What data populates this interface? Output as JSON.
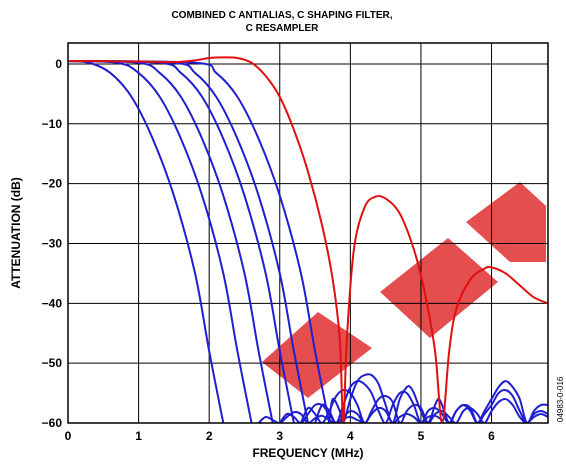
{
  "chart_data": {
    "type": "line",
    "title": "COMBINED C ANTIALIAS, C SHAPING FILTER,",
    "subtitle": "C RESAMPLER",
    "xlabel": "FREQUENCY (MHz)",
    "ylabel": "ATTENUATION (dB)",
    "xlim": [
      0,
      6.8
    ],
    "ylim": [
      -60,
      3.5
    ],
    "x_ticks": [
      "0",
      "1",
      "2",
      "3",
      "4",
      "5",
      "6"
    ],
    "y_ticks": [
      "0",
      "−10",
      "−20",
      "−30",
      "−40",
      "−50",
      "−60"
    ],
    "grid": true,
    "figure_id": "04983-0-016",
    "colors": {
      "blue": "#1f1fd0",
      "red": "#e01010",
      "watermark": "#e03030"
    },
    "series": [
      {
        "color": "#1f1fd0",
        "x": [
          0,
          0.3,
          0.6,
          0.9,
          1.2,
          1.5,
          1.8,
          2.0,
          2.2
        ],
        "y": [
          0.5,
          0.2,
          -1.5,
          -5.5,
          -12.5,
          -22,
          -35,
          -48,
          -60
        ]
      },
      {
        "color": "#1f1fd0",
        "x": [
          0,
          0.7,
          1.0,
          1.3,
          1.6,
          1.9,
          2.2,
          2.4,
          2.6
        ],
        "y": [
          0.5,
          0.2,
          -1.5,
          -5.5,
          -12.5,
          -22,
          -35,
          -48,
          -60
        ]
      },
      {
        "color": "#1f1fd0",
        "x": [
          0,
          1.0,
          1.3,
          1.6,
          1.9,
          2.2,
          2.5,
          2.7,
          2.9
        ],
        "y": [
          0.5,
          0.2,
          -1.5,
          -5.5,
          -12.5,
          -22,
          -35,
          -48,
          -60
        ]
      },
      {
        "color": "#1f1fd0",
        "x": [
          0,
          1.3,
          1.6,
          1.9,
          2.2,
          2.5,
          2.8,
          3.0,
          3.2
        ],
        "y": [
          0.5,
          0.2,
          -1.5,
          -5.5,
          -12.5,
          -22,
          -35,
          -48,
          -60
        ]
      },
      {
        "color": "#1f1fd0",
        "x": [
          0,
          1.5,
          1.8,
          2.1,
          2.4,
          2.7,
          3.0,
          3.2,
          3.4
        ],
        "y": [
          0.5,
          0.2,
          -1.5,
          -5.5,
          -12.5,
          -22,
          -35,
          -48,
          -60
        ]
      },
      {
        "color": "#1f1fd0",
        "x": [
          0,
          1.8,
          2.1,
          2.4,
          2.7,
          3.0,
          3.3,
          3.5,
          3.7
        ],
        "y": [
          0.5,
          0.2,
          -1.5,
          -5.5,
          -12.5,
          -22,
          -35,
          -48,
          -60
        ]
      },
      {
        "color": "#e01010",
        "x": [
          0,
          1.0,
          1.5,
          1.8,
          2.0,
          2.2,
          2.4,
          2.6,
          2.8,
          3.0,
          3.2,
          3.4,
          3.6,
          3.75,
          3.85,
          3.9,
          3.95,
          4.05,
          4.2,
          4.35,
          4.5,
          4.7,
          4.9,
          5.05,
          5.2,
          5.3,
          5.4,
          5.5,
          5.7,
          5.9,
          6.0,
          6.2,
          6.4,
          6.6,
          6.8
        ],
        "y": [
          0.5,
          0.4,
          0.3,
          0.6,
          1.0,
          1.1,
          1.0,
          0.2,
          -2,
          -5.5,
          -11,
          -18,
          -27,
          -36,
          -46,
          -60,
          -46,
          -31,
          -24,
          -22.2,
          -22.5,
          -25,
          -31,
          -38,
          -48,
          -60,
          -48,
          -41,
          -36,
          -34.2,
          -34,
          -35,
          -37,
          -39,
          -40
        ]
      },
      {
        "color": "#1f1fd0",
        "x": [
          3.7,
          3.75,
          3.85,
          3.9,
          4.0,
          4.1,
          4.2,
          4.3,
          4.4,
          4.5,
          4.6,
          4.7,
          4.8,
          4.85,
          4.9,
          5.0,
          5.1,
          5.2,
          5.25,
          5.3,
          5.4,
          5.5,
          5.6,
          5.7,
          5.8,
          5.9,
          6.0,
          6.1,
          6.2,
          6.3,
          6.4,
          6.5,
          6.6,
          6.7,
          6.8
        ],
        "y": [
          -60,
          -56,
          -58,
          -60,
          -56,
          -53,
          -52,
          -52,
          -53.5,
          -57,
          -60,
          -56,
          -54,
          -54,
          -55,
          -58,
          -60,
          -57,
          -56,
          -57,
          -60,
          -58,
          -57,
          -58,
          -60,
          -58,
          -56,
          -54,
          -53,
          -54,
          -56,
          -60,
          -58,
          -57,
          -57
        ]
      },
      {
        "color": "#1f1fd0",
        "x": [
          3.5,
          3.6,
          3.7,
          3.8,
          3.9,
          4.0,
          4.1,
          4.2,
          4.3,
          4.4,
          4.5,
          4.6,
          4.7,
          4.8,
          4.9,
          5.0,
          5.1,
          5.2,
          5.3,
          5.4,
          5.5,
          5.6,
          5.7,
          5.8,
          5.9,
          6.0,
          6.1,
          6.2,
          6.3,
          6.4,
          6.5,
          6.6,
          6.7,
          6.8
        ],
        "y": [
          -60,
          -57,
          -58,
          -60,
          -57,
          -54,
          -53,
          -53.5,
          -55,
          -58,
          -60,
          -57,
          -55,
          -55,
          -57,
          -60,
          -58,
          -57.5,
          -58.5,
          -60,
          -58,
          -57,
          -57.5,
          -60,
          -58.5,
          -57,
          -55,
          -54.5,
          -55.5,
          -58,
          -60,
          -58.5,
          -58,
          -58.5
        ]
      },
      {
        "color": "#1f1fd0",
        "x": [
          3.3,
          3.4,
          3.5,
          3.6,
          3.7,
          3.8,
          3.9,
          4.0,
          4.1,
          4.2,
          4.3,
          4.4,
          4.5,
          4.6,
          4.7,
          4.8,
          4.9,
          5.0,
          5.1,
          5.2,
          5.3,
          5.4,
          5.5,
          5.6,
          5.7,
          5.8,
          5.9,
          6.0,
          6.1,
          6.2,
          6.3,
          6.4,
          6.5,
          6.6,
          6.7,
          6.8
        ],
        "y": [
          -60,
          -57.5,
          -58.5,
          -60,
          -58,
          -55.5,
          -54.5,
          -55,
          -57,
          -60,
          -58,
          -56,
          -55.5,
          -56.5,
          -60,
          -58,
          -57,
          -57.5,
          -60,
          -58.5,
          -58,
          -59,
          -60,
          -58,
          -57.5,
          -58.5,
          -60,
          -58,
          -56.5,
          -56,
          -57,
          -59,
          -60,
          -59,
          -58.5,
          -59
        ]
      },
      {
        "color": "#1f1fd0",
        "x": [
          3.0,
          3.1,
          3.2,
          3.3,
          3.4,
          3.5,
          3.6,
          3.7,
          3.8,
          3.9,
          4.0,
          4.1,
          4.2,
          4.3,
          4.4,
          4.5,
          4.6,
          4.7,
          4.8,
          4.9,
          5.0,
          5.1,
          5.2,
          5.3
        ],
        "y": [
          -60,
          -58.5,
          -59,
          -60,
          -58.5,
          -57,
          -57,
          -58.5,
          -60,
          -59,
          -58,
          -58.5,
          -60,
          -58.5,
          -57.5,
          -58,
          -60,
          -59,
          -58.5,
          -59,
          -60,
          -59,
          -58.8,
          -59.5
        ]
      },
      {
        "color": "#1f1fd0",
        "x": [
          2.7,
          2.8,
          2.9,
          3.0,
          3.1,
          3.2,
          3.3,
          3.4,
          3.5,
          3.6,
          3.7,
          3.8,
          3.9,
          4.0,
          4.1,
          4.2
        ],
        "y": [
          -60,
          -59,
          -59.5,
          -60,
          -59,
          -58.2,
          -58.5,
          -60,
          -59.2,
          -58.8,
          -59.5,
          -60,
          -59.3,
          -59,
          -59.5,
          -60
        ]
      }
    ]
  }
}
